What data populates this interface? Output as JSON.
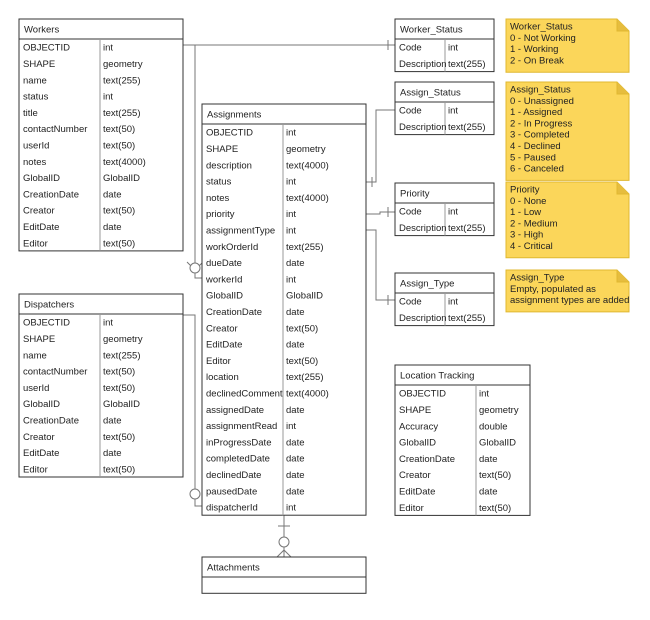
{
  "entities": [
    {
      "title": "Workers",
      "rows": [
        [
          "OBJECTID",
          "int"
        ],
        [
          "SHAPE",
          "geometry"
        ],
        [
          "name",
          "text(255)"
        ],
        [
          "status",
          "int"
        ],
        [
          "title",
          "text(255)"
        ],
        [
          "contactNumber",
          "text(50)"
        ],
        [
          "userId",
          "text(50)"
        ],
        [
          "notes",
          "text(4000)"
        ],
        [
          "GlobalID",
          "GlobalID"
        ],
        [
          "CreationDate",
          "date"
        ],
        [
          "Creator",
          "text(50)"
        ],
        [
          "EditDate",
          "date"
        ],
        [
          "Editor",
          "text(50)"
        ]
      ]
    },
    {
      "title": "Dispatchers",
      "rows": [
        [
          "OBJECTID",
          "int"
        ],
        [
          "SHAPE",
          "geometry"
        ],
        [
          "name",
          "text(255)"
        ],
        [
          "contactNumber",
          "text(50)"
        ],
        [
          "userId",
          "text(50)"
        ],
        [
          "GlobalID",
          "GlobalID"
        ],
        [
          "CreationDate",
          "date"
        ],
        [
          "Creator",
          "text(50)"
        ],
        [
          "EditDate",
          "date"
        ],
        [
          "Editor",
          "text(50)"
        ]
      ]
    },
    {
      "title": "Assignments",
      "rows": [
        [
          "OBJECTID",
          "int"
        ],
        [
          "SHAPE",
          "geometry"
        ],
        [
          "description",
          "text(4000)"
        ],
        [
          "status",
          "int"
        ],
        [
          "notes",
          "text(4000)"
        ],
        [
          "priority",
          "int"
        ],
        [
          "assignmentType",
          "int"
        ],
        [
          "workOrderId",
          "text(255)"
        ],
        [
          "dueDate",
          "date"
        ],
        [
          "workerId",
          "int"
        ],
        [
          "GlobalID",
          "GlobalID"
        ],
        [
          "CreationDate",
          "date"
        ],
        [
          "Creator",
          "text(50)"
        ],
        [
          "EditDate",
          "date"
        ],
        [
          "Editor",
          "text(50)"
        ],
        [
          "location",
          "text(255)"
        ],
        [
          "declinedComment",
          "text(4000)"
        ],
        [
          "assignedDate",
          "date"
        ],
        [
          "assignmentRead",
          "int"
        ],
        [
          "inProgressDate",
          "date"
        ],
        [
          "completedDate",
          "date"
        ],
        [
          "declinedDate",
          "date"
        ],
        [
          "pausedDate",
          "date"
        ],
        [
          "dispatcherId",
          "int"
        ]
      ]
    },
    {
      "title": "Attachments",
      "rows": []
    },
    {
      "title": "Worker_Status",
      "rows": [
        [
          "Code",
          "int"
        ],
        [
          "Description",
          "text(255)"
        ]
      ]
    },
    {
      "title": "Assign_Status",
      "rows": [
        [
          "Code",
          "int"
        ],
        [
          "Description",
          "text(255)"
        ]
      ]
    },
    {
      "title": "Priority",
      "rows": [
        [
          "Code",
          "int"
        ],
        [
          "Description",
          "text(255)"
        ]
      ]
    },
    {
      "title": "Assign_Type",
      "rows": [
        [
          "Code",
          "int"
        ],
        [
          "Description",
          "text(255)"
        ]
      ]
    },
    {
      "title": "Location Tracking",
      "rows": [
        [
          "OBJECTID",
          "int"
        ],
        [
          "SHAPE",
          "geometry"
        ],
        [
          "Accuracy",
          "double"
        ],
        [
          "GlobalID",
          "GlobalID"
        ],
        [
          "CreationDate",
          "date"
        ],
        [
          "Creator",
          "text(50)"
        ],
        [
          "EditDate",
          "date"
        ],
        [
          "Editor",
          "text(50)"
        ]
      ]
    }
  ],
  "notes": [
    {
      "title": "Worker_Status",
      "lines": [
        "0 - Not Working",
        "1 - Working",
        "2 - On Break"
      ]
    },
    {
      "title": "Assign_Status",
      "lines": [
        "0 - Unassigned",
        "1 - Assigned",
        "2 - In Progress",
        "3 - Completed",
        "4 - Declined",
        "5 - Paused",
        "6 - Canceled"
      ]
    },
    {
      "title": "Priority",
      "lines": [
        "0 - None",
        "1 - Low",
        "2 - Medium",
        "3 - High",
        "4 - Critical"
      ]
    },
    {
      "title": "Assign_Type",
      "lines": [
        "Empty, populated as",
        "assignment types are added"
      ]
    }
  ]
}
